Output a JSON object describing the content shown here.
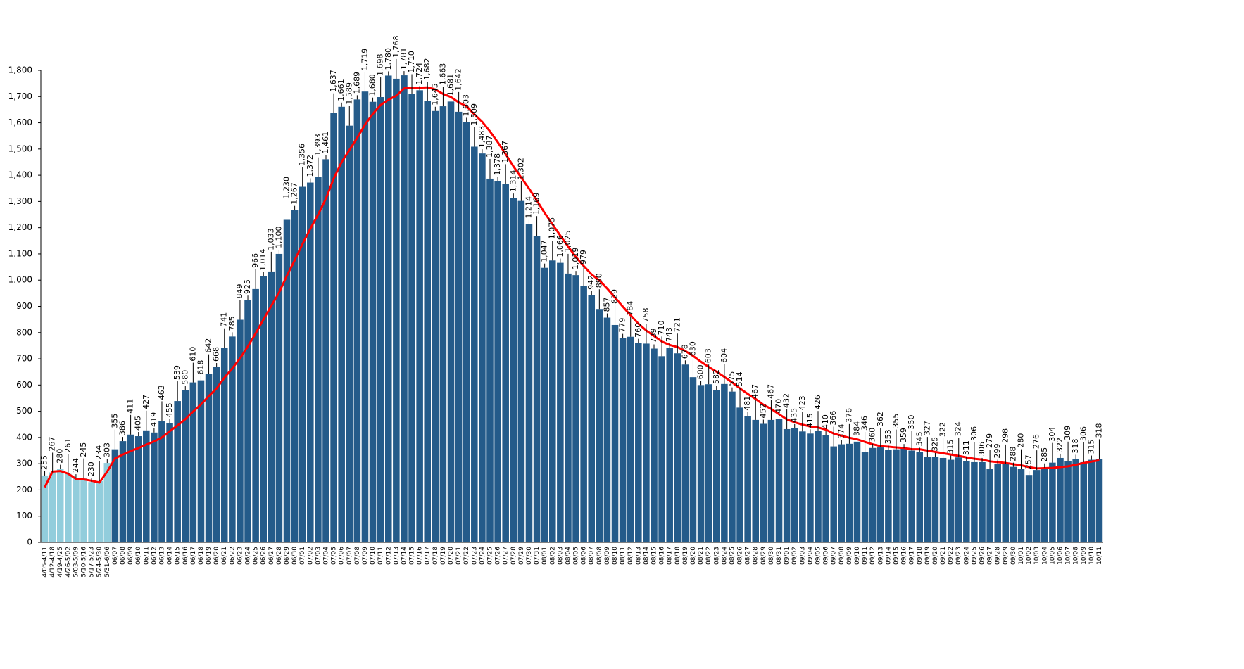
{
  "chart_data": {
    "type": "bar",
    "categories": [
      "4/05-4/11",
      "4/12-4/18",
      "4/19-4/25",
      "4/26-5/02",
      "5/03-5/09",
      "5/10-5/16",
      "5/17-5/23",
      "5/24-5/30",
      "5/31-6/06",
      "06/07",
      "06/08",
      "06/09",
      "06/10",
      "06/11",
      "06/12",
      "06/13",
      "06/14",
      "06/15",
      "06/16",
      "06/17",
      "06/18",
      "06/19",
      "06/20",
      "06/21",
      "06/22",
      "06/23",
      "06/24",
      "06/25",
      "06/26",
      "06/27",
      "06/28",
      "06/29",
      "06/30",
      "07/01",
      "07/02",
      "07/03",
      "07/04",
      "07/05",
      "07/06",
      "07/07",
      "07/08",
      "07/09",
      "07/10",
      "07/11",
      "07/12",
      "07/13",
      "07/14",
      "07/15",
      "07/16",
      "07/17",
      "07/18",
      "07/19",
      "07/20",
      "07/21",
      "07/22",
      "07/23",
      "07/24",
      "07/25",
      "07/26",
      "07/27",
      "07/28",
      "07/29",
      "07/30",
      "07/31",
      "08/01",
      "08/02",
      "08/03",
      "08/04",
      "08/05",
      "08/06",
      "08/07",
      "08/08",
      "08/09",
      "08/10",
      "08/11",
      "08/12",
      "08/13",
      "08/14",
      "08/15",
      "08/16",
      "08/17",
      "08/18",
      "08/19",
      "08/20",
      "08/21",
      "08/22",
      "08/23",
      "08/24",
      "08/25",
      "08/26",
      "08/27",
      "08/28",
      "08/29",
      "08/30",
      "08/31",
      "09/01",
      "09/02",
      "09/03",
      "09/04",
      "09/05",
      "09/06",
      "09/07",
      "09/08",
      "09/09",
      "09/10",
      "09/11",
      "09/12",
      "09/13",
      "09/14",
      "09/15",
      "09/16",
      "09/17",
      "09/18",
      "09/19",
      "09/20",
      "09/21",
      "09/22",
      "09/23",
      "09/24",
      "09/25",
      "09/26",
      "09/27",
      "09/28",
      "09/29",
      "09/30",
      "10/01",
      "10/02",
      "10/03",
      "10/04",
      "10/05",
      "10/06",
      "10/07",
      "10/08",
      "10/09",
      "10/10",
      "10/11"
    ],
    "series": [
      {
        "color": "#92cddc",
        "values": [
          255,
          267,
          280,
          261,
          244,
          245,
          230,
          234,
          303,
          null,
          null,
          null,
          null,
          null,
          null,
          null,
          null,
          null,
          null,
          null,
          null,
          null,
          null,
          null,
          null,
          null,
          null,
          null,
          null,
          null,
          null,
          null,
          null,
          null,
          null,
          null,
          null,
          null,
          null,
          null,
          null,
          null,
          null,
          null,
          null,
          null,
          null,
          null,
          null,
          null,
          null,
          null,
          null,
          null,
          null,
          null,
          null,
          null,
          null,
          null,
          null,
          null,
          null,
          null,
          null,
          null,
          null,
          null,
          null,
          null,
          null,
          null,
          null,
          null,
          null,
          null,
          null,
          null,
          null,
          null,
          null,
          null,
          null,
          null,
          null,
          null,
          null,
          null,
          null,
          null,
          null,
          null,
          null,
          null,
          null,
          null,
          null,
          null,
          null,
          null,
          null,
          null,
          null,
          null,
          null,
          null,
          null,
          null,
          null,
          null,
          null,
          null,
          null,
          null,
          null,
          null,
          null,
          null,
          null,
          null,
          null,
          null,
          null,
          null,
          null,
          null,
          null,
          null,
          null,
          null,
          null,
          null,
          null,
          null,
          null,
          null
        ]
      },
      {
        "color": "#245b8a",
        "values": [
          null,
          null,
          null,
          null,
          null,
          null,
          null,
          null,
          null,
          355,
          386,
          411,
          405,
          427,
          419,
          463,
          455,
          539,
          580,
          610,
          618,
          642,
          668,
          741,
          785,
          849,
          925,
          966,
          1014,
          1033,
          1100,
          1230,
          1267,
          1356,
          1372,
          1393,
          1461,
          1637,
          1661,
          1589,
          1689,
          1719,
          1680,
          1698,
          1780,
          1768,
          1781,
          1710,
          1724,
          1682,
          1645,
          1663,
          1681,
          1642,
          1603,
          1509,
          1483,
          1387,
          1378,
          1367,
          1314,
          1302,
          1214,
          1169,
          1047,
          1075,
          1066,
          1025,
          1019,
          979,
          942,
          890,
          857,
          829,
          779,
          784,
          760,
          758,
          739,
          710,
          743,
          721,
          678,
          630,
          600,
          603,
          582,
          604,
          575,
          514,
          481,
          467,
          452,
          467,
          470,
          432,
          435,
          423,
          415,
          426,
          410,
          366,
          374,
          376,
          384,
          346,
          360,
          362,
          353,
          355,
          359,
          350,
          345,
          327,
          325,
          322,
          315,
          324,
          311,
          306,
          306,
          279,
          299,
          298,
          288,
          280,
          257,
          276,
          285,
          304,
          322,
          309,
          318,
          306,
          315,
          318
        ],
        "value_labels": [
          null,
          null,
          null,
          null,
          null,
          null,
          null,
          null,
          null,
          "355",
          "386",
          "411",
          "405",
          "427",
          "419",
          "463",
          "455",
          "539",
          "580",
          "610",
          "618",
          "642",
          "668",
          "741",
          "785",
          "849",
          "925",
          "966",
          "1,014",
          "1,033",
          "1,100",
          "1,230",
          "1,267",
          "1,356",
          "1,372",
          "1,393",
          "1,461",
          "1,637",
          "1,661",
          "1,589",
          "1,689",
          "1,719",
          "1,680",
          "1,698",
          "1,780",
          "1,768",
          "1,781",
          "1,710",
          "1,724",
          "1,682",
          "1,645",
          "1,663",
          "1,681",
          "1,642",
          "1,603",
          "1,509",
          "1,483",
          "1,387",
          "1,378",
          "1,367",
          "1,314",
          "1,302",
          "1,214",
          "1,169",
          "1,047",
          "1,075",
          "1,066",
          "1,025",
          "1,019",
          "979",
          "942",
          "890",
          "857",
          "829",
          "779",
          "784",
          "760",
          "758",
          "739",
          "710",
          "743",
          "721",
          "678",
          "630",
          "600",
          "603",
          "582",
          "604",
          "575",
          "514",
          "481",
          "467",
          "452",
          "467",
          "470",
          "432",
          "435",
          "423",
          "415",
          "426",
          "410",
          "366",
          "374",
          "376",
          "384",
          "346",
          "360",
          "362",
          "353",
          "355",
          "359",
          "350",
          "345",
          "327",
          "325",
          "322",
          "315",
          "324",
          "311",
          "306",
          "306",
          "279",
          "299",
          "298",
          "288",
          "280",
          "257",
          "276",
          "285",
          "304",
          "322",
          "309",
          "318",
          "306",
          "315",
          "318"
        ]
      },
      {
        "type": "line",
        "color": "#ff0000",
        "values": [
          210,
          270,
          272,
          262,
          242,
          240,
          235,
          228,
          270,
          320,
          335,
          348,
          360,
          373,
          385,
          400,
          424,
          446,
          470,
          499,
          526,
          558,
          587,
          628,
          663,
          702,
          747,
          797,
          850,
          902,
          953,
          1017,
          1076,
          1138,
          1196,
          1250,
          1311,
          1388,
          1450,
          1496,
          1543,
          1593,
          1634,
          1668,
          1688,
          1703,
          1731,
          1734,
          1734,
          1735,
          1727,
          1710,
          1698,
          1678,
          1663,
          1632,
          1604,
          1567,
          1526,
          1481,
          1434,
          1391,
          1349,
          1304,
          1256,
          1213,
          1170,
          1128,
          1088,
          1054,
          1022,
          999,
          968,
          934,
          899,
          866,
          834,
          808,
          787,
          766,
          753,
          745,
          730,
          711,
          689,
          669,
          651,
          631,
          610,
          587,
          566,
          547,
          525,
          509,
          489,
          469,
          458,
          449,
          442,
          438,
          430,
          415,
          407,
          399,
          393,
          383,
          374,
          367,
          365,
          362,
          360,
          355,
          355,
          350,
          345,
          340,
          335,
          330,
          324,
          319,
          316,
          309,
          306,
          303,
          298,
          294,
          287,
          282,
          283,
          284,
          287,
          290,
          296,
          303,
          308,
          313
        ]
      }
    ],
    "show_value_labels": true,
    "ylim": [
      0,
      1800
    ],
    "yticks": [
      0,
      100,
      200,
      300,
      400,
      500,
      600,
      700,
      800,
      900,
      {
        "value": 1000,
        "label": "1,000"
      },
      {
        "value": 1100,
        "label": "1,100"
      },
      {
        "value": 1200,
        "label": "1,200"
      },
      {
        "value": 1300,
        "label": "1,300"
      },
      {
        "value": 1400,
        "label": "1,400"
      },
      {
        "value": 1500,
        "label": "1,500"
      },
      {
        "value": 1600,
        "label": "1,600"
      },
      {
        "value": 1700,
        "label": "1,700"
      },
      {
        "value": 1800,
        "label": "1,800"
      }
    ],
    "grid": false
  }
}
